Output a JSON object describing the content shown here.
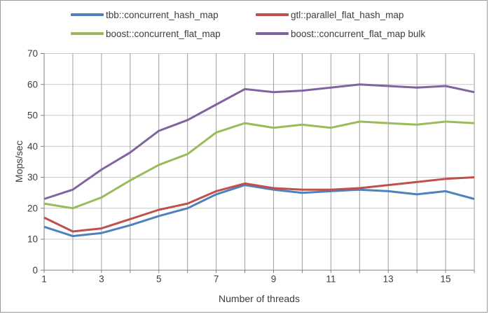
{
  "legend": {
    "items": [
      {
        "label": "tbb::concurrent_hash_map",
        "color": "#4F81BD"
      },
      {
        "label": "gtl::parallel_flat_hash_map",
        "color": "#C0504D"
      },
      {
        "label": "boost::concurrent_flat_map",
        "color": "#9BBB59"
      },
      {
        "label": "boost::concurrent_flat_map bulk",
        "color": "#8064A2"
      }
    ]
  },
  "chart_data": {
    "type": "line",
    "title": "",
    "xlabel": "Number of threads",
    "ylabel": "Mops/sec",
    "x": [
      1,
      2,
      3,
      4,
      5,
      6,
      7,
      8,
      9,
      10,
      11,
      12,
      13,
      14,
      15,
      16
    ],
    "series": [
      {
        "name": "tbb::concurrent_hash_map",
        "color": "#4F81BD",
        "values": [
          14,
          11,
          12,
          14.5,
          17.5,
          20,
          24.5,
          27.5,
          26,
          25,
          25.5,
          26,
          25.5,
          24.5,
          25.5,
          23
        ]
      },
      {
        "name": "gtl::parallel_flat_hash_map",
        "color": "#C0504D",
        "values": [
          17,
          12.5,
          13.5,
          16.5,
          19.5,
          21.5,
          25.5,
          28,
          26.5,
          26,
          26,
          26.5,
          27.5,
          28.5,
          29.5,
          30
        ]
      },
      {
        "name": "boost::concurrent_flat_map",
        "color": "#9BBB59",
        "values": [
          21.5,
          20,
          23.5,
          29,
          34,
          37.5,
          44.5,
          47.5,
          46,
          47,
          46,
          48,
          47.5,
          47,
          48,
          47.5
        ]
      },
      {
        "name": "boost::concurrent_flat_map bulk",
        "color": "#8064A2",
        "values": [
          23,
          26,
          32.5,
          38,
          45,
          48.5,
          53.5,
          58.5,
          57.5,
          58,
          59,
          60,
          59.5,
          59,
          59.5,
          57.5
        ]
      }
    ],
    "xlim": [
      1,
      16
    ],
    "ylim": [
      0,
      70
    ],
    "xtick_labels": [
      1,
      3,
      5,
      7,
      9,
      11,
      13,
      15
    ],
    "yticks": [
      0,
      10,
      20,
      30,
      40,
      50,
      60,
      70
    ],
    "grid": {
      "vertical": true,
      "horizontal": true
    },
    "legend_position": "top"
  },
  "colors": {
    "background": "#ffffff",
    "window_border": "#9a9a9a",
    "axis": "#808080",
    "grid_vertical": "#9e9e9e",
    "grid_horizontal": "#c9c9c9",
    "text": "#3d3d3d"
  }
}
